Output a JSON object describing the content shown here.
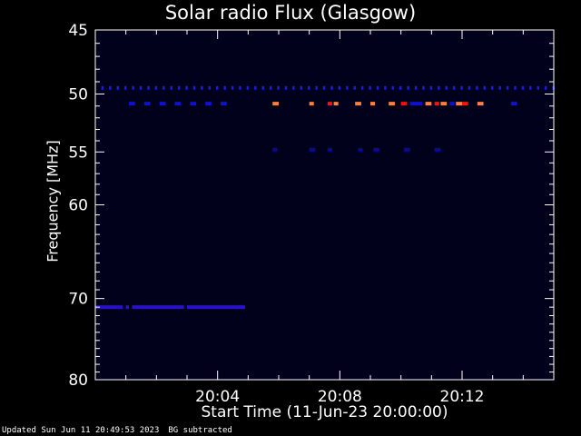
{
  "chart_data": {
    "type": "heatmap",
    "title": "Solar radio Flux (Glasgow)",
    "xlabel": "Start Time (11-Jun-23 20:00:00)",
    "ylabel": "Frequency [MHz]",
    "x_range_minutes": [
      0,
      15
    ],
    "x_ticks": [
      {
        "minute": 4,
        "label": "20:04"
      },
      {
        "minute": 8,
        "label": "20:08"
      },
      {
        "minute": 12,
        "label": "20:12"
      }
    ],
    "y_range_mhz": [
      45,
      80
    ],
    "y_scale": "log",
    "y_ticks": [
      45,
      50,
      55,
      60,
      70,
      80
    ],
    "background_color": "#01011c",
    "features": [
      {
        "name": "49.5 MHz band",
        "freq": 49.5,
        "intervals": [
          [
            0.2,
            15
          ]
        ],
        "color": "#1a1ae0",
        "dashed": true
      },
      {
        "name": "50.8 MHz markers left",
        "freq": 50.8,
        "intervals": [
          [
            1.1,
            1.3
          ],
          [
            1.6,
            1.8
          ],
          [
            2.1,
            2.3
          ],
          [
            2.6,
            2.8
          ],
          [
            3.1,
            3.3
          ],
          [
            3.6,
            3.8
          ],
          [
            4.1,
            4.3
          ]
        ],
        "color": "#1010d0"
      },
      {
        "name": "50.8 MHz emission",
        "freq": 50.8,
        "intervals": [
          [
            5.8,
            6.0
          ],
          [
            7.0,
            7.15
          ],
          [
            7.8,
            7.95
          ],
          [
            8.5,
            8.7
          ],
          [
            9.0,
            9.15
          ],
          [
            9.6,
            9.8
          ],
          [
            10.8,
            11.0
          ],
          [
            11.3,
            11.5
          ],
          [
            11.8,
            12.0
          ],
          [
            12.5,
            12.7
          ]
        ],
        "color": "#ff8040"
      },
      {
        "name": "50.8 MHz emission red",
        "freq": 50.8,
        "intervals": [
          [
            7.6,
            7.75
          ],
          [
            10.0,
            10.2
          ],
          [
            11.1,
            11.25
          ],
          [
            12.0,
            12.2
          ]
        ],
        "color": "#ff1010"
      },
      {
        "name": "50.8 MHz blue right",
        "freq": 50.8,
        "intervals": [
          [
            10.3,
            10.7
          ],
          [
            11.6,
            11.75
          ],
          [
            13.6,
            13.8
          ]
        ],
        "color": "#1010d0"
      },
      {
        "name": "54.8 MHz faint",
        "freq": 54.8,
        "intervals": [
          [
            5.8,
            5.95
          ],
          [
            7.0,
            7.2
          ],
          [
            7.6,
            7.75
          ],
          [
            8.6,
            8.75
          ],
          [
            9.1,
            9.3
          ],
          [
            10.1,
            10.3
          ],
          [
            11.1,
            11.3
          ]
        ],
        "color": "#0a0a90"
      },
      {
        "name": "71 MHz band",
        "freq": 71,
        "intervals": [
          [
            0,
            0.9
          ],
          [
            1.0,
            1.1
          ],
          [
            1.2,
            2.9
          ],
          [
            3.0,
            4.9
          ]
        ],
        "color": "#2a10c8"
      }
    ]
  },
  "footer": {
    "updated": "Updated Sun Jun 11 20:49:53 2023",
    "note": "BG subtracted"
  }
}
